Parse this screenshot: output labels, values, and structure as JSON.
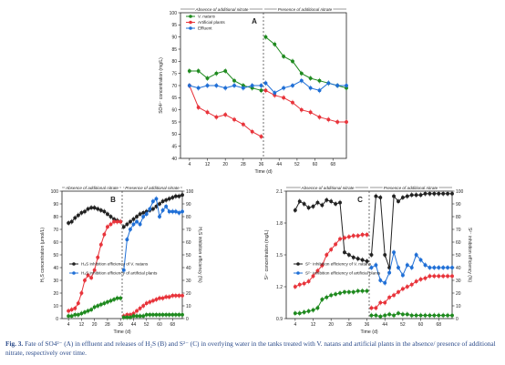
{
  "caption": {
    "label": "Fig. 3.",
    "text": "Fate of SO4²⁻ (A) in effluent and releases of H₂S (B) and S²⁻ (C) in overlying water in the tanks treated with V. natans and artificial plants in the absence/ presence of additional nitrate, respectively over time."
  },
  "chart_data": [
    {
      "panel": "A",
      "type": "line",
      "xlabel": "Time (d)",
      "ylabel": "SO4²⁻ concentration (mg/L)",
      "xlim": [
        0,
        74
      ],
      "ylim": [
        40,
        100
      ],
      "xticks": [
        4,
        12,
        20,
        28,
        36,
        44,
        52,
        60,
        68
      ],
      "yticks": [
        40,
        45,
        50,
        55,
        60,
        65,
        70,
        75,
        80,
        85,
        90,
        95,
        100
      ],
      "divider_x": 37,
      "phase_left": "Absence of additional nitrate",
      "phase_right": "Presence of additional nitrate",
      "legend": [
        {
          "name": "V. natans",
          "color": "#1f8a1f",
          "marker": "circle"
        },
        {
          "name": "Artificial plants",
          "color": "#e8343b",
          "marker": "circle"
        },
        {
          "name": "Effluent",
          "color": "#1f6fd6",
          "marker": "circle"
        }
      ],
      "x": [
        4,
        8,
        12,
        16,
        20,
        24,
        28,
        32,
        36
      ],
      "x2": [
        38,
        42,
        46,
        50,
        54,
        58,
        62,
        66,
        70,
        74
      ],
      "series": [
        {
          "name": "V. natans",
          "color": "#1f8a1f",
          "values": [
            76,
            76,
            73,
            75,
            76,
            72,
            70,
            69,
            68
          ],
          "values2": [
            90,
            87,
            82,
            80,
            75,
            73,
            72,
            71,
            70,
            69
          ]
        },
        {
          "name": "Artificial plants",
          "color": "#e8343b",
          "values": [
            70,
            61,
            59,
            57,
            58,
            56,
            54,
            51,
            49
          ],
          "values2": [
            68,
            66,
            65,
            63,
            60,
            59,
            57,
            56,
            55,
            55
          ]
        },
        {
          "name": "Effluent",
          "color": "#1f6fd6",
          "values": [
            70,
            69,
            70,
            70,
            69,
            70,
            69,
            70,
            70
          ],
          "values2": [
            71,
            67,
            69,
            70,
            72,
            69,
            68,
            71,
            70,
            70
          ]
        }
      ]
    },
    {
      "panel": "B",
      "type": "line",
      "xlabel": "Time (d)",
      "ylabel": "H₂S concentration (μmol/L)",
      "y2label": "H₂S inhibition efficiency (%)",
      "xlim": [
        0,
        74
      ],
      "ylim": [
        0,
        100
      ],
      "y2lim": [
        0,
        100
      ],
      "xticks": [
        4,
        12,
        20,
        28,
        36,
        44,
        52,
        60,
        68
      ],
      "yticks": [
        0,
        10,
        20,
        30,
        40,
        50,
        60,
        70,
        80,
        90,
        100
      ],
      "divider_x": 37,
      "phase_left": "Absence of additional nitrate",
      "phase_right": "Presence of additional nitrate",
      "legend": [
        {
          "name": "H₂S inhibition efficiency of V. natans",
          "color": "#222222"
        },
        {
          "name": "H₂S inhibition efficiency of artificial plants",
          "color": "#1f6fd6"
        }
      ]
    },
    {
      "panel": "C",
      "type": "line",
      "xlabel": "Time (d)",
      "ylabel": "S²⁻ concentration (mg/L)",
      "y2label": "S²⁻ inhibition efficiency (%)",
      "xlim": [
        0,
        74
      ],
      "ylim": [
        0.9,
        2.1
      ],
      "y2lim": [
        0,
        100
      ],
      "xticks": [
        4,
        12,
        20,
        28,
        36,
        44,
        52,
        60,
        68
      ],
      "yticks": [
        0.9,
        1.2,
        1.5,
        1.8,
        2.1
      ],
      "y2ticks": [
        0,
        10,
        20,
        30,
        40,
        50,
        60,
        70,
        80,
        90,
        100
      ],
      "divider_x": 37,
      "phase_left": "Absence of additional nitrate",
      "phase_right": "Presence of additional nitrate",
      "legend": [
        {
          "name": "S²⁻ inhibition efficiency of V. natans",
          "color": "#222222"
        },
        {
          "name": "S²⁻ inhibition efficiency of artificial plants",
          "color": "#1f6fd6"
        }
      ]
    }
  ]
}
